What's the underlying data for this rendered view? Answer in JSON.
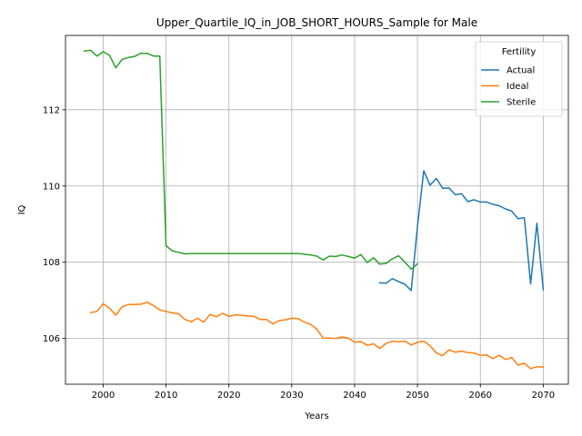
{
  "chart_data": {
    "type": "line",
    "title": "Upper_Quartile_IQ_in_JOB_SHORT_HOURS_Sample for Male",
    "xlabel": "Years",
    "ylabel": "IQ",
    "xlim": [
      1994,
      2074
    ],
    "ylim": [
      104.8,
      113.95
    ],
    "xticks": [
      2000,
      2010,
      2020,
      2030,
      2040,
      2050,
      2060,
      2070
    ],
    "yticks": [
      106,
      108,
      110,
      112
    ],
    "grid": true,
    "legend": {
      "title": "Fertility",
      "placement": "top-right"
    },
    "series": [
      {
        "name": "Actual",
        "color": "#1f77b4",
        "points": [
          [
            2044,
            107.46
          ],
          [
            2045,
            107.45
          ],
          [
            2046,
            107.57
          ],
          [
            2047,
            107.49
          ],
          [
            2048,
            107.42
          ],
          [
            2049,
            107.26
          ],
          [
            2050,
            108.95
          ],
          [
            2051,
            110.4
          ],
          [
            2052,
            110.02
          ],
          [
            2053,
            110.2
          ],
          [
            2054,
            109.94
          ],
          [
            2055,
            109.95
          ],
          [
            2056,
            109.77
          ],
          [
            2057,
            109.8
          ],
          [
            2058,
            109.59
          ],
          [
            2059,
            109.64
          ],
          [
            2060,
            109.58
          ],
          [
            2061,
            109.58
          ],
          [
            2062,
            109.52
          ],
          [
            2063,
            109.48
          ],
          [
            2064,
            109.4
          ],
          [
            2065,
            109.34
          ],
          [
            2066,
            109.14
          ],
          [
            2067,
            109.17
          ],
          [
            2068,
            107.43
          ],
          [
            2069,
            109.02
          ],
          [
            2070,
            107.28
          ]
        ]
      },
      {
        "name": "Ideal",
        "color": "#ff7f0e",
        "points": [
          [
            1998,
            106.68
          ],
          [
            1999,
            106.71
          ],
          [
            2000,
            106.91
          ],
          [
            2001,
            106.8
          ],
          [
            2002,
            106.61
          ],
          [
            2003,
            106.83
          ],
          [
            2004,
            106.89
          ],
          [
            2005,
            106.89
          ],
          [
            2006,
            106.9
          ],
          [
            2007,
            106.95
          ],
          [
            2008,
            106.86
          ],
          [
            2009,
            106.75
          ],
          [
            2010,
            106.71
          ],
          [
            2011,
            106.67
          ],
          [
            2012,
            106.65
          ],
          [
            2013,
            106.5
          ],
          [
            2014,
            106.44
          ],
          [
            2015,
            106.53
          ],
          [
            2016,
            106.43
          ],
          [
            2017,
            106.63
          ],
          [
            2018,
            106.57
          ],
          [
            2019,
            106.66
          ],
          [
            2020,
            106.58
          ],
          [
            2021,
            106.62
          ],
          [
            2022,
            106.61
          ],
          [
            2023,
            106.59
          ],
          [
            2024,
            106.58
          ],
          [
            2025,
            106.5
          ],
          [
            2026,
            106.5
          ],
          [
            2027,
            106.38
          ],
          [
            2028,
            106.47
          ],
          [
            2029,
            106.49
          ],
          [
            2030,
            106.53
          ],
          [
            2031,
            106.52
          ],
          [
            2032,
            106.43
          ],
          [
            2033,
            106.37
          ],
          [
            2034,
            106.24
          ],
          [
            2035,
            106.01
          ],
          [
            2036,
            106.01
          ],
          [
            2037,
            106.0
          ],
          [
            2038,
            106.04
          ],
          [
            2039,
            106.01
          ],
          [
            2040,
            105.9
          ],
          [
            2041,
            105.92
          ],
          [
            2042,
            105.82
          ],
          [
            2043,
            105.86
          ],
          [
            2044,
            105.74
          ],
          [
            2045,
            105.87
          ],
          [
            2046,
            105.93
          ],
          [
            2047,
            105.91
          ],
          [
            2048,
            105.93
          ],
          [
            2049,
            105.83
          ],
          [
            2050,
            105.9
          ],
          [
            2051,
            105.93
          ],
          [
            2052,
            105.81
          ],
          [
            2053,
            105.62
          ],
          [
            2054,
            105.55
          ],
          [
            2055,
            105.7
          ],
          [
            2056,
            105.64
          ],
          [
            2057,
            105.67
          ],
          [
            2058,
            105.63
          ],
          [
            2059,
            105.62
          ],
          [
            2060,
            105.56
          ],
          [
            2061,
            105.57
          ],
          [
            2062,
            105.47
          ],
          [
            2063,
            105.56
          ],
          [
            2064,
            105.45
          ],
          [
            2065,
            105.5
          ],
          [
            2066,
            105.3
          ],
          [
            2067,
            105.35
          ],
          [
            2068,
            105.21
          ],
          [
            2069,
            105.26
          ],
          [
            2070,
            105.25
          ]
        ]
      },
      {
        "name": "Sterile",
        "color": "#2ca02c",
        "points": [
          [
            1997,
            113.54
          ],
          [
            1998,
            113.56
          ],
          [
            1999,
            113.41
          ],
          [
            2000,
            113.52
          ],
          [
            2001,
            113.43
          ],
          [
            2002,
            113.1
          ],
          [
            2003,
            113.32
          ],
          [
            2004,
            113.37
          ],
          [
            2005,
            113.4
          ],
          [
            2006,
            113.48
          ],
          [
            2007,
            113.48
          ],
          [
            2008,
            113.41
          ],
          [
            2009,
            113.41
          ],
          [
            2010,
            108.43
          ],
          [
            2011,
            108.3
          ],
          [
            2012,
            108.26
          ],
          [
            2013,
            108.22
          ],
          [
            2014,
            108.23
          ],
          [
            2015,
            108.23
          ],
          [
            2016,
            108.23
          ],
          [
            2017,
            108.23
          ],
          [
            2018,
            108.23
          ],
          [
            2019,
            108.23
          ],
          [
            2020,
            108.23
          ],
          [
            2021,
            108.23
          ],
          [
            2022,
            108.23
          ],
          [
            2023,
            108.23
          ],
          [
            2024,
            108.23
          ],
          [
            2025,
            108.23
          ],
          [
            2026,
            108.23
          ],
          [
            2027,
            108.23
          ],
          [
            2028,
            108.23
          ],
          [
            2029,
            108.23
          ],
          [
            2030,
            108.23
          ],
          [
            2031,
            108.23
          ],
          [
            2032,
            108.21
          ],
          [
            2033,
            108.19
          ],
          [
            2034,
            108.16
          ],
          [
            2035,
            108.06
          ],
          [
            2036,
            108.16
          ],
          [
            2037,
            108.15
          ],
          [
            2038,
            108.19
          ],
          [
            2039,
            108.15
          ],
          [
            2040,
            108.11
          ],
          [
            2041,
            108.2
          ],
          [
            2042,
            107.99
          ],
          [
            2043,
            108.12
          ],
          [
            2044,
            107.95
          ],
          [
            2045,
            107.97
          ],
          [
            2046,
            108.09
          ],
          [
            2047,
            108.17
          ],
          [
            2048,
            108.0
          ],
          [
            2049,
            107.82
          ],
          [
            2050,
            107.96
          ]
        ]
      }
    ]
  }
}
